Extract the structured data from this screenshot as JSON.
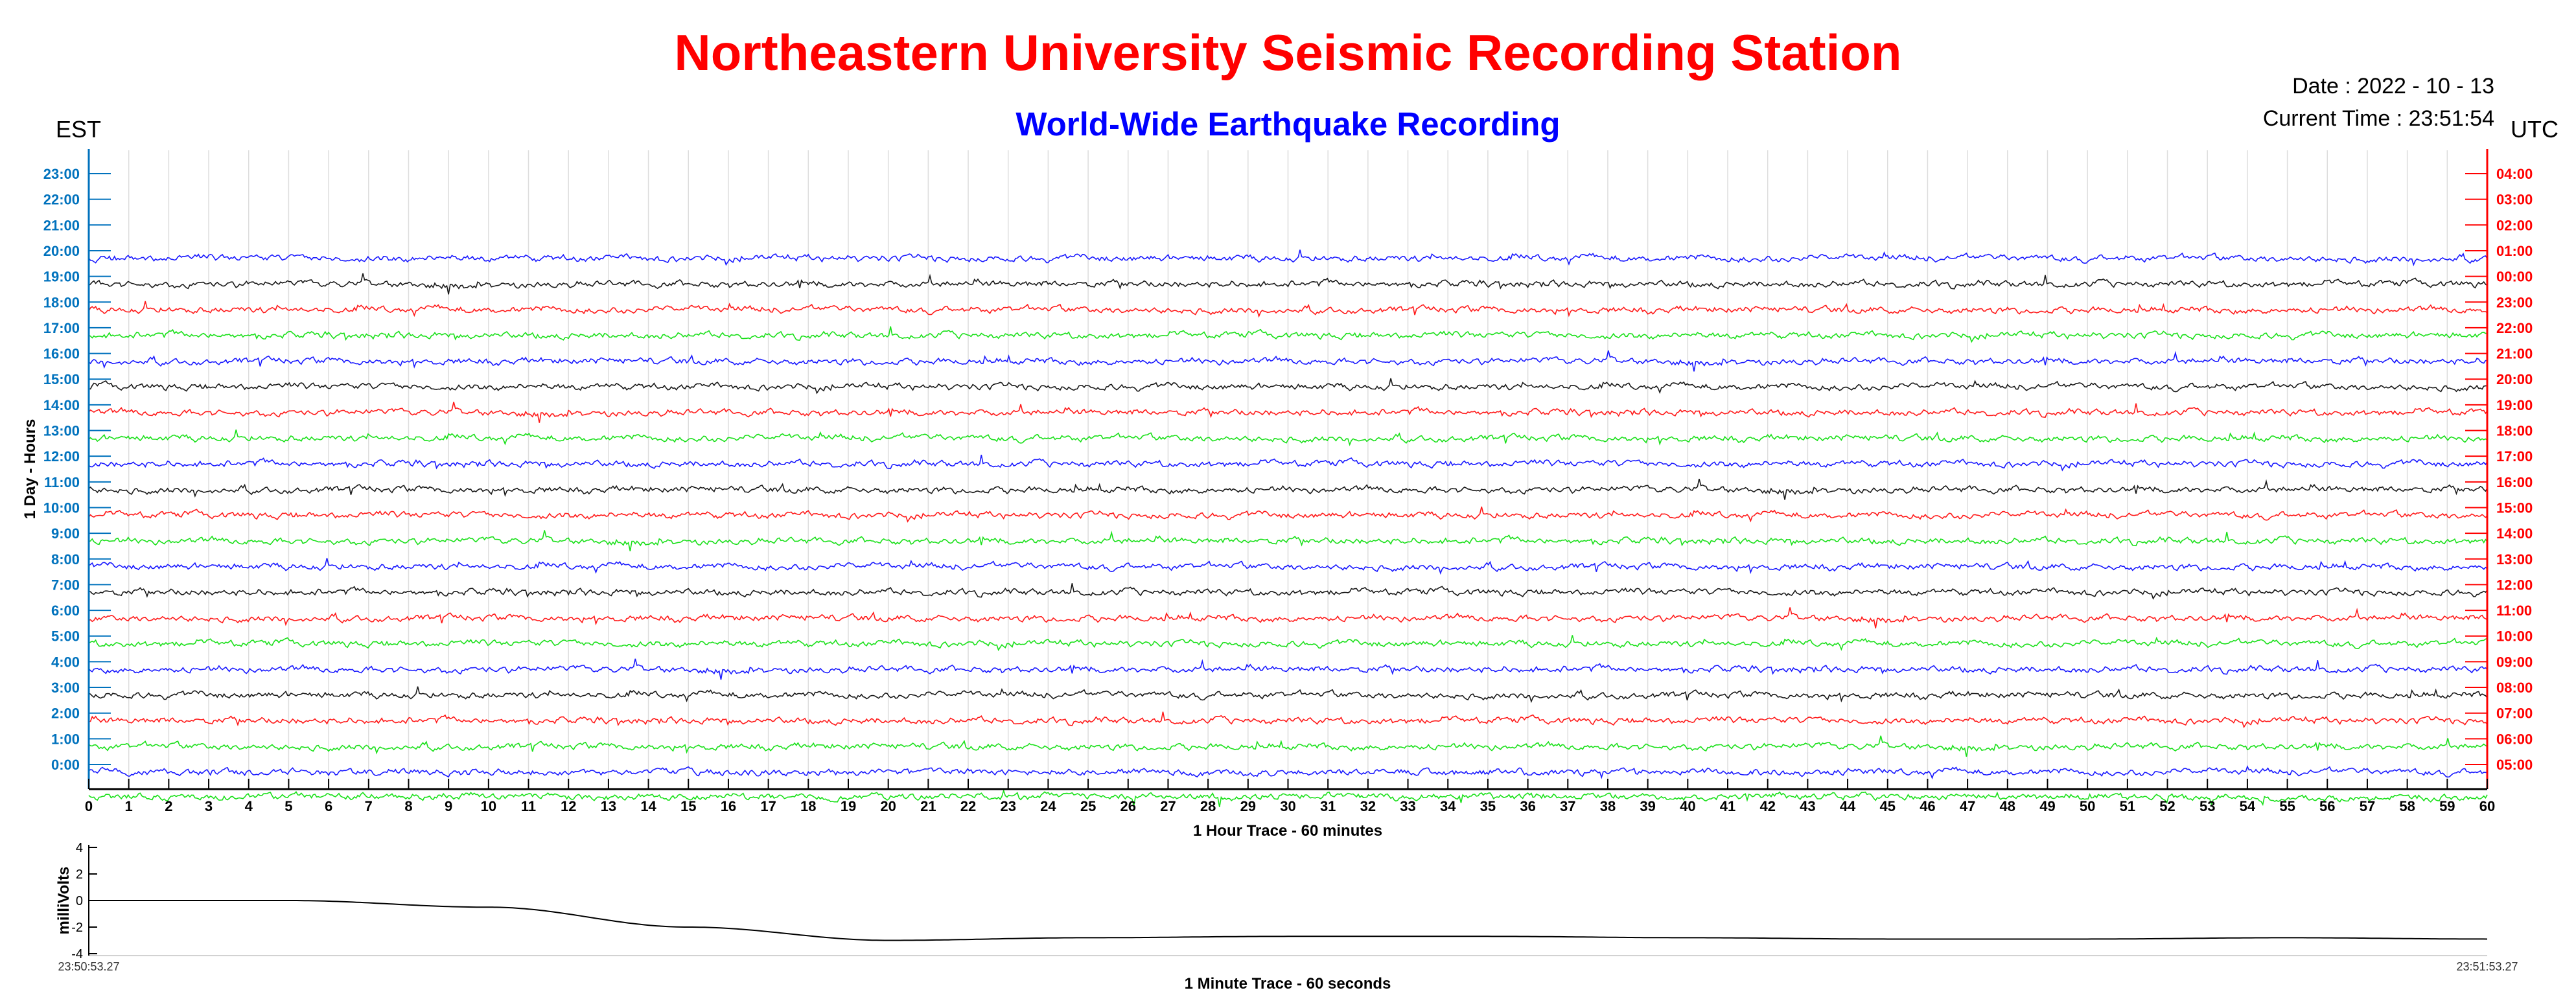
{
  "header": {
    "title": "Northeastern University Seismic Recording Station",
    "subtitle": "World-Wide Earthquake Recording",
    "date": "Date : 2022 - 10 - 13",
    "current_time": "Current Time : 23:51:54",
    "left_tz": "EST",
    "right_tz": "UTC"
  },
  "colors": {
    "title": "#ff0000",
    "subtitle": "#0000ff",
    "est_axis": "#0072bd",
    "utc_axis": "#ff0000",
    "trace_cycle": [
      "#0000ff",
      "#00dd00",
      "#ff0000",
      "#000000"
    ],
    "minute_trace": "#000000"
  },
  "chart_data": [
    {
      "type": "line",
      "title": "Northeastern University Seismic Recording Station",
      "subtitle": "World-Wide Earthquake Recording",
      "xlabel": "1 Hour Trace - 60 minutes",
      "ylabel": "1 Day - Hours",
      "xlim": [
        0,
        60
      ],
      "x_ticks": [
        "0",
        "1",
        "2",
        "3",
        "4",
        "5",
        "6",
        "7",
        "8",
        "9",
        "10",
        "11",
        "12",
        "13",
        "14",
        "15",
        "16",
        "17",
        "18",
        "19",
        "20",
        "21",
        "22",
        "23",
        "24",
        "25",
        "26",
        "27",
        "28",
        "29",
        "30",
        "31",
        "32",
        "33",
        "34",
        "35",
        "36",
        "37",
        "38",
        "39",
        "40",
        "41",
        "42",
        "43",
        "44",
        "45",
        "46",
        "47",
        "48",
        "49",
        "50",
        "51",
        "52",
        "53",
        "54",
        "55",
        "56",
        "57",
        "58",
        "59",
        "60"
      ],
      "left_y_ticks_est": [
        "0:00",
        "1:00",
        "2:00",
        "3:00",
        "4:00",
        "5:00",
        "6:00",
        "7:00",
        "8:00",
        "9:00",
        "10:00",
        "11:00",
        "12:00",
        "13:00",
        "14:00",
        "15:00",
        "16:00",
        "17:00",
        "18:00",
        "19:00",
        "20:00",
        "21:00",
        "22:00",
        "23:00"
      ],
      "right_y_ticks_utc": [
        "05:00",
        "06:00",
        "07:00",
        "08:00",
        "09:00",
        "10:00",
        "11:00",
        "12:00",
        "13:00",
        "14:00",
        "15:00",
        "16:00",
        "17:00",
        "18:00",
        "19:00",
        "20:00",
        "21:00",
        "22:00",
        "23:00",
        "00:00",
        "01:00",
        "02:00",
        "03:00",
        "04:00"
      ],
      "recorded_hours_est": [
        "0:00",
        "1:00",
        "2:00",
        "3:00",
        "4:00",
        "5:00",
        "6:00",
        "7:00",
        "8:00",
        "9:00",
        "10:00",
        "11:00",
        "12:00",
        "13:00",
        "14:00",
        "15:00",
        "16:00",
        "17:00",
        "18:00",
        "19:00",
        "20:00"
      ],
      "grid": true,
      "trace_color_cycle": [
        "blue",
        "green",
        "red",
        "black"
      ]
    },
    {
      "type": "line",
      "xlabel": "1 Minute Trace  - 60 seconds",
      "ylabel": "milliVolts",
      "ylim": [
        -4,
        4
      ],
      "y_ticks": [
        "4",
        "2",
        "0",
        "-2",
        "-4"
      ],
      "x_start_label": "23:50:53.27",
      "x_end_label": "23:51:53.27",
      "series": [
        {
          "t_seconds": [
            0,
            5,
            10,
            15,
            20,
            25,
            30,
            35,
            40,
            45,
            50,
            55,
            60
          ],
          "values": [
            0.0,
            0.0,
            -0.5,
            -2.0,
            -3.0,
            -2.8,
            -2.7,
            -2.7,
            -2.8,
            -2.9,
            -2.9,
            -2.8,
            -2.9
          ]
        }
      ]
    }
  ]
}
